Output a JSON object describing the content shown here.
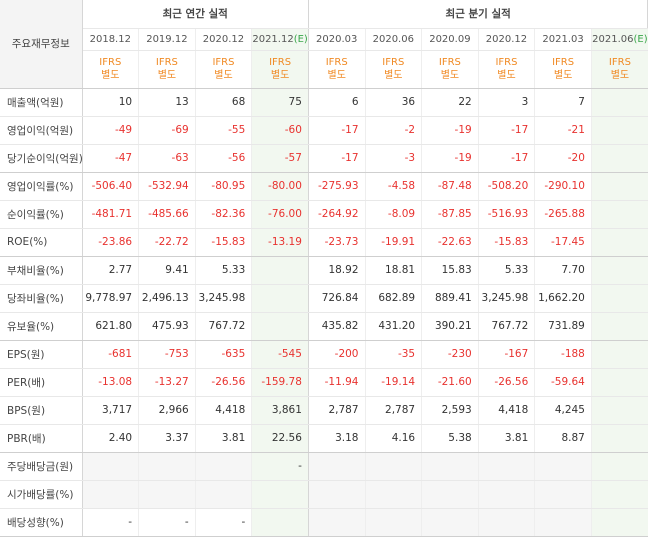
{
  "table": {
    "corner": "주요재무정보",
    "sections": [
      {
        "title": "최근 연간 실적",
        "span": 4
      },
      {
        "title": "최근 분기 실적",
        "span": 6
      }
    ],
    "columns": [
      {
        "period": "2018.12",
        "basis": [
          "IFRS",
          "별도"
        ]
      },
      {
        "period": "2019.12",
        "basis": [
          "IFRS",
          "별도"
        ]
      },
      {
        "period": "2020.12",
        "basis": [
          "IFRS",
          "별도"
        ]
      },
      {
        "period": "2021.12",
        "estimate": "(E)",
        "basis": [
          "IFRS",
          "별도"
        ]
      },
      {
        "period": "2020.03",
        "basis": [
          "IFRS",
          "별도"
        ]
      },
      {
        "period": "2020.06",
        "basis": [
          "IFRS",
          "별도"
        ]
      },
      {
        "period": "2020.09",
        "basis": [
          "IFRS",
          "별도"
        ]
      },
      {
        "period": "2020.12",
        "basis": [
          "IFRS",
          "별도"
        ]
      },
      {
        "period": "2021.03",
        "basis": [
          "IFRS",
          "별도"
        ]
      },
      {
        "period": "2021.06",
        "estimate": "(E)",
        "basis": [
          "IFRS",
          "별도"
        ]
      }
    ],
    "negative_color": "#e8322f",
    "row_groups": [
      [
        {
          "label": "매출액(억원)",
          "values": [
            "10",
            "13",
            "68",
            "75",
            "6",
            "36",
            "22",
            "3",
            "7",
            null
          ]
        },
        {
          "label": "영업이익(억원)",
          "values": [
            "-49",
            "-69",
            "-55",
            "-60",
            "-17",
            "-2",
            "-19",
            "-17",
            "-21",
            null
          ]
        },
        {
          "label": "당기순이익(억원)",
          "values": [
            "-47",
            "-63",
            "-56",
            "-57",
            "-17",
            "-3",
            "-19",
            "-17",
            "-20",
            null
          ]
        }
      ],
      [
        {
          "label": "영업이익률(%)",
          "values": [
            "-506.40",
            "-532.94",
            "-80.95",
            "-80.00",
            "-275.93",
            "-4.58",
            "-87.48",
            "-508.20",
            "-290.10",
            null
          ]
        },
        {
          "label": "순이익률(%)",
          "values": [
            "-481.71",
            "-485.66",
            "-82.36",
            "-76.00",
            "-264.92",
            "-8.09",
            "-87.85",
            "-516.93",
            "-265.88",
            null
          ]
        },
        {
          "label": "ROE(%)",
          "values": [
            "-23.86",
            "-22.72",
            "-15.83",
            "-13.19",
            "-23.73",
            "-19.91",
            "-22.63",
            "-15.83",
            "-17.45",
            null
          ]
        }
      ],
      [
        {
          "label": "부채비율(%)",
          "values": [
            "2.77",
            "9.41",
            "5.33",
            null,
            "18.92",
            "18.81",
            "15.83",
            "5.33",
            "7.70",
            null
          ]
        },
        {
          "label": "당좌비율(%)",
          "values": [
            "9,778.97",
            "2,496.13",
            "3,245.98",
            null,
            "726.84",
            "682.89",
            "889.41",
            "3,245.98",
            "1,662.20",
            null
          ]
        },
        {
          "label": "유보율(%)",
          "values": [
            "621.80",
            "475.93",
            "767.72",
            null,
            "435.82",
            "431.20",
            "390.21",
            "767.72",
            "731.89",
            null
          ]
        }
      ],
      [
        {
          "label": "EPS(원)",
          "values": [
            "-681",
            "-753",
            "-635",
            "-545",
            "-200",
            "-35",
            "-230",
            "-167",
            "-188",
            null
          ]
        },
        {
          "label": "PER(배)",
          "values": [
            "-13.08",
            "-13.27",
            "-26.56",
            "-159.78",
            "-11.94",
            "-19.14",
            "-21.60",
            "-26.56",
            "-59.64",
            null
          ]
        },
        {
          "label": "BPS(원)",
          "values": [
            "3,717",
            "2,966",
            "4,418",
            "3,861",
            "2,787",
            "2,787",
            "2,593",
            "4,418",
            "4,245",
            null
          ]
        },
        {
          "label": "PBR(배)",
          "values": [
            "2.40",
            "3.37",
            "3.81",
            "22.56",
            "3.18",
            "4.16",
            "5.38",
            "3.81",
            "8.87",
            null
          ]
        }
      ],
      [
        {
          "label": "주당배당금(원)",
          "values": [
            null,
            null,
            null,
            "-",
            null,
            null,
            null,
            null,
            null,
            null
          ]
        },
        {
          "label": "시가배당률(%)",
          "values": [
            null,
            null,
            null,
            null,
            null,
            null,
            null,
            null,
            null,
            null
          ]
        },
        {
          "label": "배당성향(%)",
          "values": [
            "-",
            "-",
            "-",
            null,
            null,
            null,
            null,
            null,
            null,
            null
          ]
        }
      ]
    ]
  }
}
